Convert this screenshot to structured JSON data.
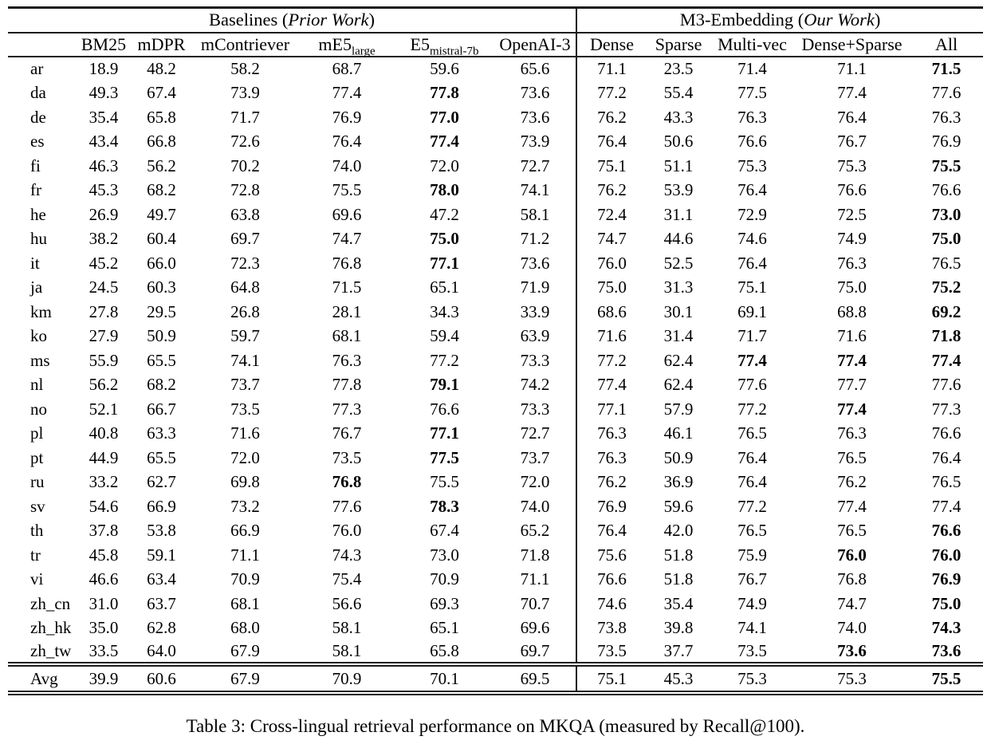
{
  "caption": "Table 3: Cross-lingual retrieval performance on MKQA (measured by Recall@100).",
  "table": {
    "groups": {
      "baselines": {
        "prefix": "Baselines (",
        "italic": "Prior Work",
        "suffix": ")"
      },
      "m3": {
        "prefix": "M3-Embedding (",
        "italic": "Our Work",
        "suffix": ")"
      }
    },
    "columns": [
      {
        "base": "BM25",
        "sub": ""
      },
      {
        "base": "mDPR",
        "sub": ""
      },
      {
        "base": "mContriever",
        "sub": ""
      },
      {
        "base": "mE5",
        "sub": "large"
      },
      {
        "base": "E5",
        "sub": "mistral-7b"
      },
      {
        "base": "OpenAI-3",
        "sub": ""
      },
      {
        "base": "Dense",
        "sub": ""
      },
      {
        "base": "Sparse",
        "sub": ""
      },
      {
        "base": "Multi-vec",
        "sub": ""
      },
      {
        "base": "Dense+Sparse",
        "sub": ""
      },
      {
        "base": "All",
        "sub": ""
      }
    ],
    "rows": [
      {
        "lang": "ar",
        "values": [
          "18.9",
          "48.2",
          "58.2",
          "68.7",
          "59.6",
          "65.6",
          "71.1",
          "23.5",
          "71.4",
          "71.1",
          "71.5"
        ],
        "bold": [
          10
        ]
      },
      {
        "lang": "da",
        "values": [
          "49.3",
          "67.4",
          "73.9",
          "77.4",
          "77.8",
          "73.6",
          "77.2",
          "55.4",
          "77.5",
          "77.4",
          "77.6"
        ],
        "bold": [
          4
        ]
      },
      {
        "lang": "de",
        "values": [
          "35.4",
          "65.8",
          "71.7",
          "76.9",
          "77.0",
          "73.6",
          "76.2",
          "43.3",
          "76.3",
          "76.4",
          "76.3"
        ],
        "bold": [
          4
        ]
      },
      {
        "lang": "es",
        "values": [
          "43.4",
          "66.8",
          "72.6",
          "76.4",
          "77.4",
          "73.9",
          "76.4",
          "50.6",
          "76.6",
          "76.7",
          "76.9"
        ],
        "bold": [
          4
        ]
      },
      {
        "lang": "fi",
        "values": [
          "46.3",
          "56.2",
          "70.2",
          "74.0",
          "72.0",
          "72.7",
          "75.1",
          "51.1",
          "75.3",
          "75.3",
          "75.5"
        ],
        "bold": [
          10
        ]
      },
      {
        "lang": "fr",
        "values": [
          "45.3",
          "68.2",
          "72.8",
          "75.5",
          "78.0",
          "74.1",
          "76.2",
          "53.9",
          "76.4",
          "76.6",
          "76.6"
        ],
        "bold": [
          4
        ]
      },
      {
        "lang": "he",
        "values": [
          "26.9",
          "49.7",
          "63.8",
          "69.6",
          "47.2",
          "58.1",
          "72.4",
          "31.1",
          "72.9",
          "72.5",
          "73.0"
        ],
        "bold": [
          10
        ]
      },
      {
        "lang": "hu",
        "values": [
          "38.2",
          "60.4",
          "69.7",
          "74.7",
          "75.0",
          "71.2",
          "74.7",
          "44.6",
          "74.6",
          "74.9",
          "75.0"
        ],
        "bold": [
          4,
          10
        ]
      },
      {
        "lang": "it",
        "values": [
          "45.2",
          "66.0",
          "72.3",
          "76.8",
          "77.1",
          "73.6",
          "76.0",
          "52.5",
          "76.4",
          "76.3",
          "76.5"
        ],
        "bold": [
          4
        ]
      },
      {
        "lang": "ja",
        "values": [
          "24.5",
          "60.3",
          "64.8",
          "71.5",
          "65.1",
          "71.9",
          "75.0",
          "31.3",
          "75.1",
          "75.0",
          "75.2"
        ],
        "bold": [
          10
        ]
      },
      {
        "lang": "km",
        "values": [
          "27.8",
          "29.5",
          "26.8",
          "28.1",
          "34.3",
          "33.9",
          "68.6",
          "30.1",
          "69.1",
          "68.8",
          "69.2"
        ],
        "bold": [
          10
        ]
      },
      {
        "lang": "ko",
        "values": [
          "27.9",
          "50.9",
          "59.7",
          "68.1",
          "59.4",
          "63.9",
          "71.6",
          "31.4",
          "71.7",
          "71.6",
          "71.8"
        ],
        "bold": [
          10
        ]
      },
      {
        "lang": "ms",
        "values": [
          "55.9",
          "65.5",
          "74.1",
          "76.3",
          "77.2",
          "73.3",
          "77.2",
          "62.4",
          "77.4",
          "77.4",
          "77.4"
        ],
        "bold": [
          8,
          9,
          10
        ]
      },
      {
        "lang": "nl",
        "values": [
          "56.2",
          "68.2",
          "73.7",
          "77.8",
          "79.1",
          "74.2",
          "77.4",
          "62.4",
          "77.6",
          "77.7",
          "77.6"
        ],
        "bold": [
          4
        ]
      },
      {
        "lang": "no",
        "values": [
          "52.1",
          "66.7",
          "73.5",
          "77.3",
          "76.6",
          "73.3",
          "77.1",
          "57.9",
          "77.2",
          "77.4",
          "77.3"
        ],
        "bold": [
          9
        ]
      },
      {
        "lang": "pl",
        "values": [
          "40.8",
          "63.3",
          "71.6",
          "76.7",
          "77.1",
          "72.7",
          "76.3",
          "46.1",
          "76.5",
          "76.3",
          "76.6"
        ],
        "bold": [
          4
        ]
      },
      {
        "lang": "pt",
        "values": [
          "44.9",
          "65.5",
          "72.0",
          "73.5",
          "77.5",
          "73.7",
          "76.3",
          "50.9",
          "76.4",
          "76.5",
          "76.4"
        ],
        "bold": [
          4
        ]
      },
      {
        "lang": "ru",
        "values": [
          "33.2",
          "62.7",
          "69.8",
          "76.8",
          "75.5",
          "72.0",
          "76.2",
          "36.9",
          "76.4",
          "76.2",
          "76.5"
        ],
        "bold": [
          3
        ]
      },
      {
        "lang": "sv",
        "values": [
          "54.6",
          "66.9",
          "73.2",
          "77.6",
          "78.3",
          "74.0",
          "76.9",
          "59.6",
          "77.2",
          "77.4",
          "77.4"
        ],
        "bold": [
          4
        ]
      },
      {
        "lang": "th",
        "values": [
          "37.8",
          "53.8",
          "66.9",
          "76.0",
          "67.4",
          "65.2",
          "76.4",
          "42.0",
          "76.5",
          "76.5",
          "76.6"
        ],
        "bold": [
          10
        ]
      },
      {
        "lang": "tr",
        "values": [
          "45.8",
          "59.1",
          "71.1",
          "74.3",
          "73.0",
          "71.8",
          "75.6",
          "51.8",
          "75.9",
          "76.0",
          "76.0"
        ],
        "bold": [
          9,
          10
        ]
      },
      {
        "lang": "vi",
        "values": [
          "46.6",
          "63.4",
          "70.9",
          "75.4",
          "70.9",
          "71.1",
          "76.6",
          "51.8",
          "76.7",
          "76.8",
          "76.9"
        ],
        "bold": [
          10
        ]
      },
      {
        "lang": "zh_cn",
        "values": [
          "31.0",
          "63.7",
          "68.1",
          "56.6",
          "69.3",
          "70.7",
          "74.6",
          "35.4",
          "74.9",
          "74.7",
          "75.0"
        ],
        "bold": [
          10
        ]
      },
      {
        "lang": "zh_hk",
        "values": [
          "35.0",
          "62.8",
          "68.0",
          "58.1",
          "65.1",
          "69.6",
          "73.8",
          "39.8",
          "74.1",
          "74.0",
          "74.3"
        ],
        "bold": [
          10
        ]
      },
      {
        "lang": "zh_tw",
        "values": [
          "33.5",
          "64.0",
          "67.9",
          "58.1",
          "65.8",
          "69.7",
          "73.5",
          "37.7",
          "73.5",
          "73.6",
          "73.6"
        ],
        "bold": [
          9,
          10
        ]
      },
      {
        "lang": "Avg",
        "values": [
          "39.9",
          "60.6",
          "67.9",
          "70.9",
          "70.1",
          "69.5",
          "75.1",
          "45.3",
          "75.3",
          "75.3",
          "75.5"
        ],
        "bold": [
          10
        ]
      }
    ]
  }
}
